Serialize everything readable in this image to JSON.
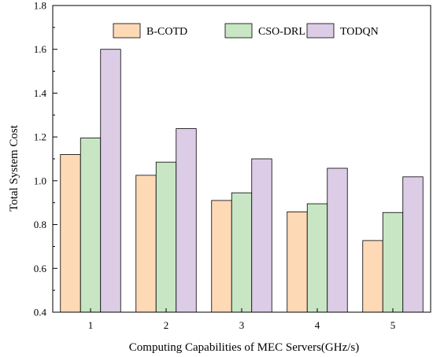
{
  "chart_data": {
    "type": "bar",
    "categories": [
      "1",
      "2",
      "3",
      "4",
      "5"
    ],
    "series": [
      {
        "name": "B-COTD",
        "values": [
          1.12,
          1.025,
          0.91,
          0.858,
          0.727
        ],
        "color": "#FDD9B5"
      },
      {
        "name": "CSO-DRL",
        "values": [
          1.195,
          1.085,
          0.945,
          0.895,
          0.855
        ],
        "color": "#C8E6C4"
      },
      {
        "name": "TODQN",
        "values": [
          1.6,
          1.238,
          1.1,
          1.057,
          1.018
        ],
        "color": "#DCCCE6"
      }
    ],
    "xlabel": "Computing Capabilities of MEC Servers(GHz/s)",
    "ylabel": "Total System Cost",
    "ylim": [
      0.4,
      1.8
    ],
    "yticks": [
      "0.4",
      "0.6",
      "0.8",
      "1.0",
      "1.2",
      "1.4",
      "1.6",
      "1.8"
    ],
    "grid": false,
    "legend_position": "top-right"
  }
}
